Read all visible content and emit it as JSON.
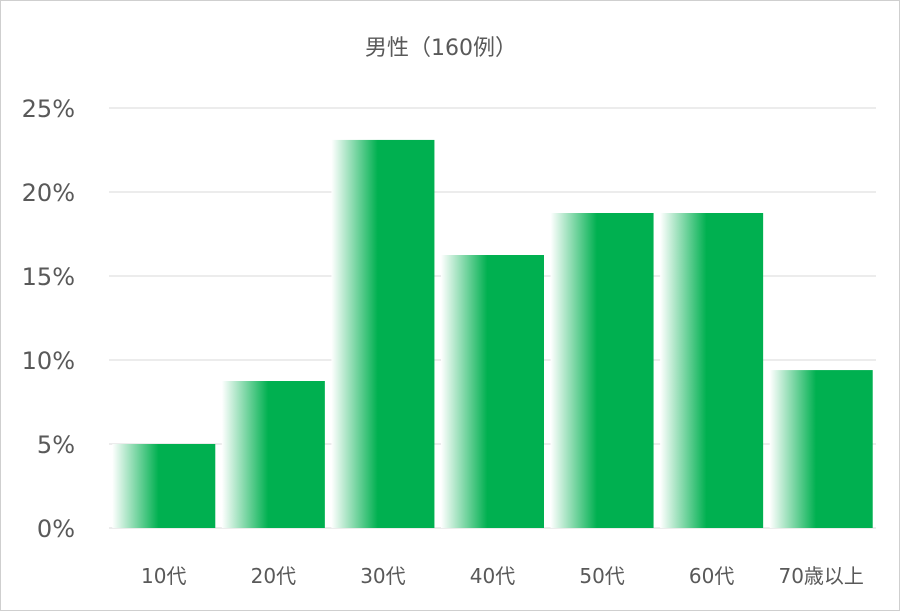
{
  "chart_data": {
    "type": "bar",
    "title": "男性（160例）",
    "categories": [
      "10代",
      "20代",
      "30代",
      "40代",
      "50代",
      "60代",
      "70歳以上"
    ],
    "values": [
      5.0,
      8.75,
      23.1,
      16.25,
      18.75,
      18.75,
      9.4
    ],
    "ylim": [
      0,
      25
    ],
    "yticks": [
      0,
      5,
      10,
      15,
      20,
      25
    ],
    "ytick_labels": [
      "0%",
      "5%",
      "10%",
      "15%",
      "20%",
      "25%"
    ],
    "xlabel": "",
    "ylabel": "",
    "grid": true,
    "bar_color": "#00b050",
    "bar_fade_color": "#ffffff"
  }
}
